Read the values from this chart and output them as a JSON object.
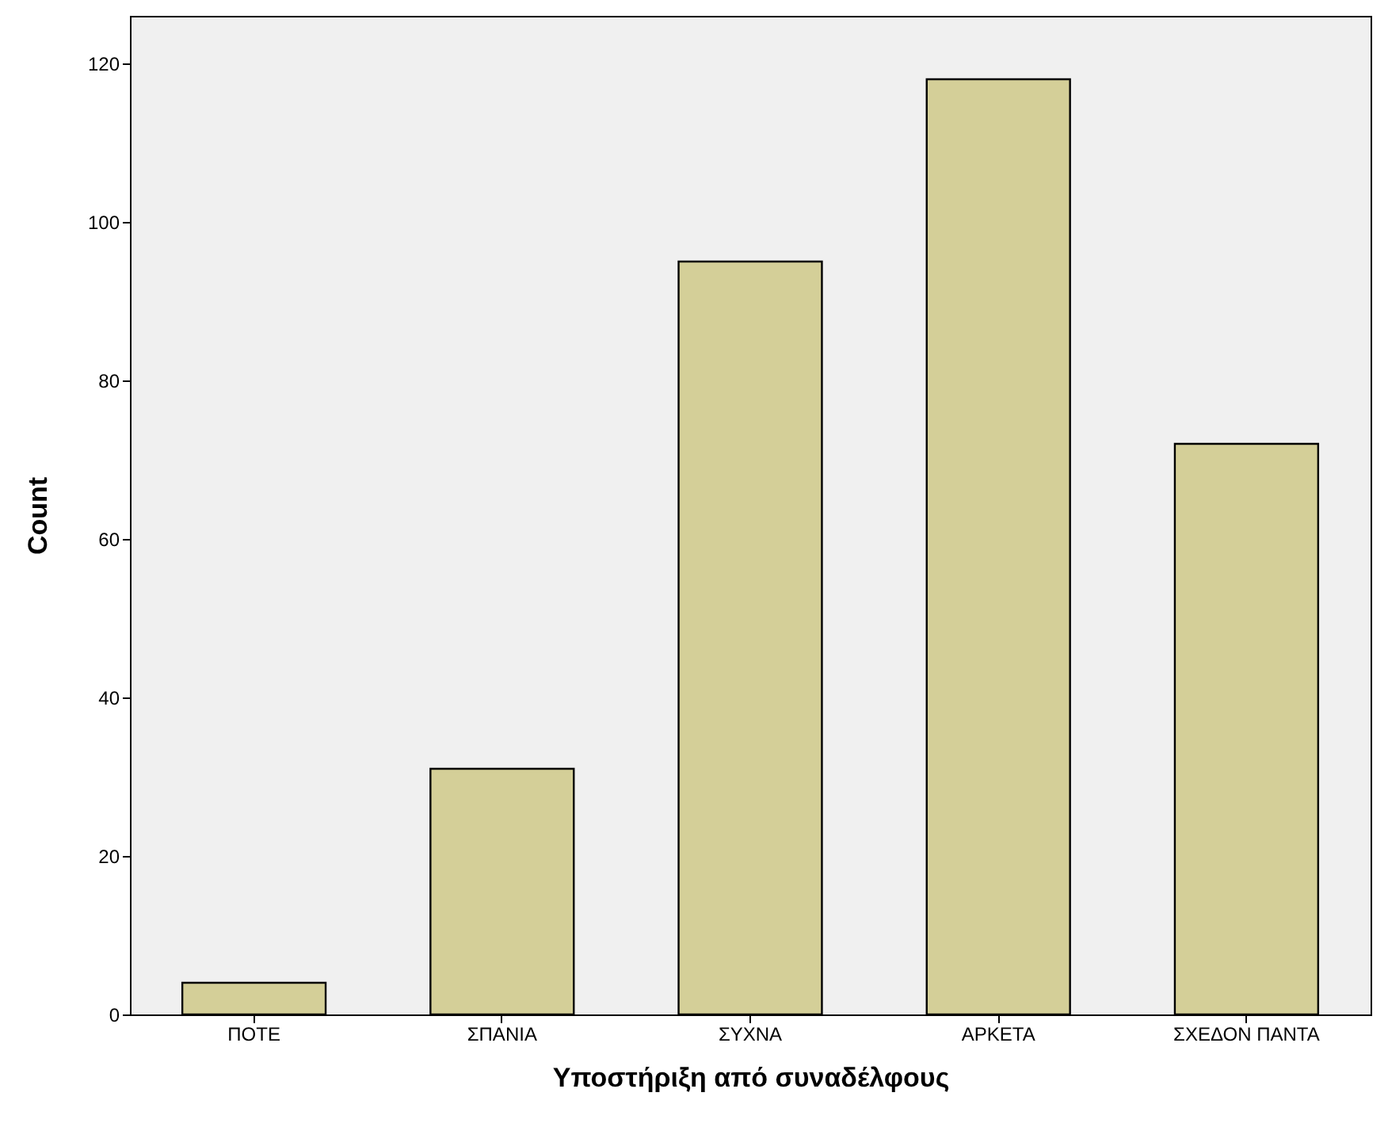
{
  "chart_data": {
    "type": "bar",
    "xlabel": "Υποστήριξη από συναδέλφους",
    "ylabel": "Count",
    "categories": [
      "ΠΟΤΕ",
      "ΣΠΑΝΙΑ",
      "ΣΥΧΝΑ",
      "ΑΡΚΕΤΑ",
      "ΣΧΕΔΟΝ ΠΑΝΤΑ"
    ],
    "values": [
      4,
      31,
      95,
      118,
      72
    ],
    "color": "#d4cf98",
    "ylim": [
      0,
      126
    ],
    "yticks": [
      0,
      20,
      40,
      60,
      80,
      100,
      120
    ],
    "grid": false
  }
}
